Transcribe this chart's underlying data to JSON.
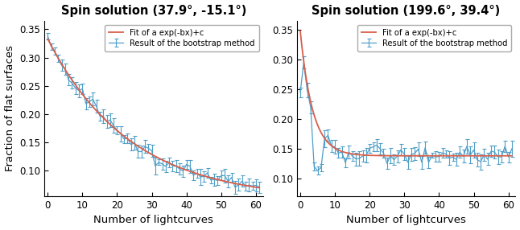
{
  "panel1": {
    "title": "Spin solution (37.9°, -15.1°)",
    "fit_a": 0.285,
    "fit_b": 0.042,
    "fit_c": 0.048,
    "xlim": [
      -1,
      62
    ],
    "ylim": [
      0.055,
      0.365
    ]
  },
  "panel2": {
    "title": "Spin solution (199.6°, 39.4°)",
    "fit_a": 0.21,
    "fit_b": 0.28,
    "fit_c": 0.138,
    "xlim": [
      -1,
      62
    ],
    "ylim": [
      0.07,
      0.365
    ]
  },
  "xlabel": "Number of lightcurves",
  "ylabel": "Fraction of flat surfaces",
  "legend_line1": "Result of the bootstrap method",
  "legend_line2": "Fit of a exp(-bx)+c",
  "blue": "#4F9FC8",
  "red": "#D95F4B",
  "yticks": [
    0.1,
    0.15,
    0.2,
    0.25,
    0.3,
    0.35
  ],
  "xticks": [
    0,
    10,
    20,
    30,
    40,
    50,
    60
  ],
  "title_fontsize": 10.5,
  "label_fontsize": 9.5,
  "tick_fontsize": 8.5
}
